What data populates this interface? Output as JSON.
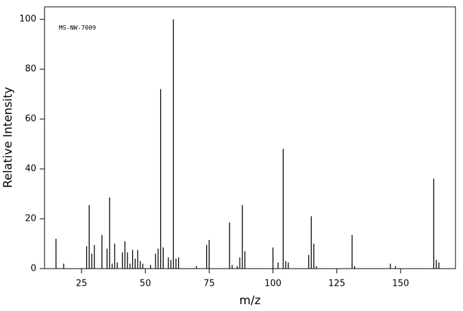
{
  "chart_data": {
    "type": "stem",
    "annotation": "MS-NW-7009",
    "x_label": "m/z",
    "y_label": "Relative Intensity",
    "color": "#000000",
    "x": [
      15,
      18,
      27,
      28,
      29,
      30,
      33,
      35,
      36,
      37,
      38,
      39,
      41,
      42,
      43,
      44,
      45,
      46,
      47,
      48,
      49,
      52,
      54,
      55,
      56,
      57,
      59,
      60,
      61,
      62,
      63,
      70,
      74,
      75,
      83,
      84,
      86,
      87,
      88,
      89,
      100,
      102,
      104,
      105,
      106,
      114,
      115,
      116,
      117,
      131,
      132,
      146,
      148,
      163,
      164,
      165
    ],
    "values": [
      12,
      2,
      9,
      25.5,
      6,
      9.5,
      13.5,
      8,
      28.5,
      2,
      10,
      2.5,
      6.5,
      11,
      6.5,
      2,
      7.5,
      4,
      7.5,
      3,
      2,
      1.5,
      6,
      8,
      72,
      8.5,
      4.5,
      3.5,
      100,
      4,
      4.5,
      1,
      9.5,
      11.5,
      18.5,
      1.5,
      1,
      4.5,
      25.5,
      7,
      8.5,
      2.5,
      48,
      3,
      2.5,
      5.5,
      21,
      10,
      1,
      13.5,
      1,
      2,
      1,
      36,
      3.5,
      2.5
    ],
    "xlim": [
      10.5,
      171.5
    ],
    "ylim": [
      0,
      105
    ],
    "xticks": [
      25,
      50,
      75,
      100,
      125,
      150
    ],
    "yticks": [
      0,
      20,
      40,
      60,
      80,
      100
    ]
  }
}
